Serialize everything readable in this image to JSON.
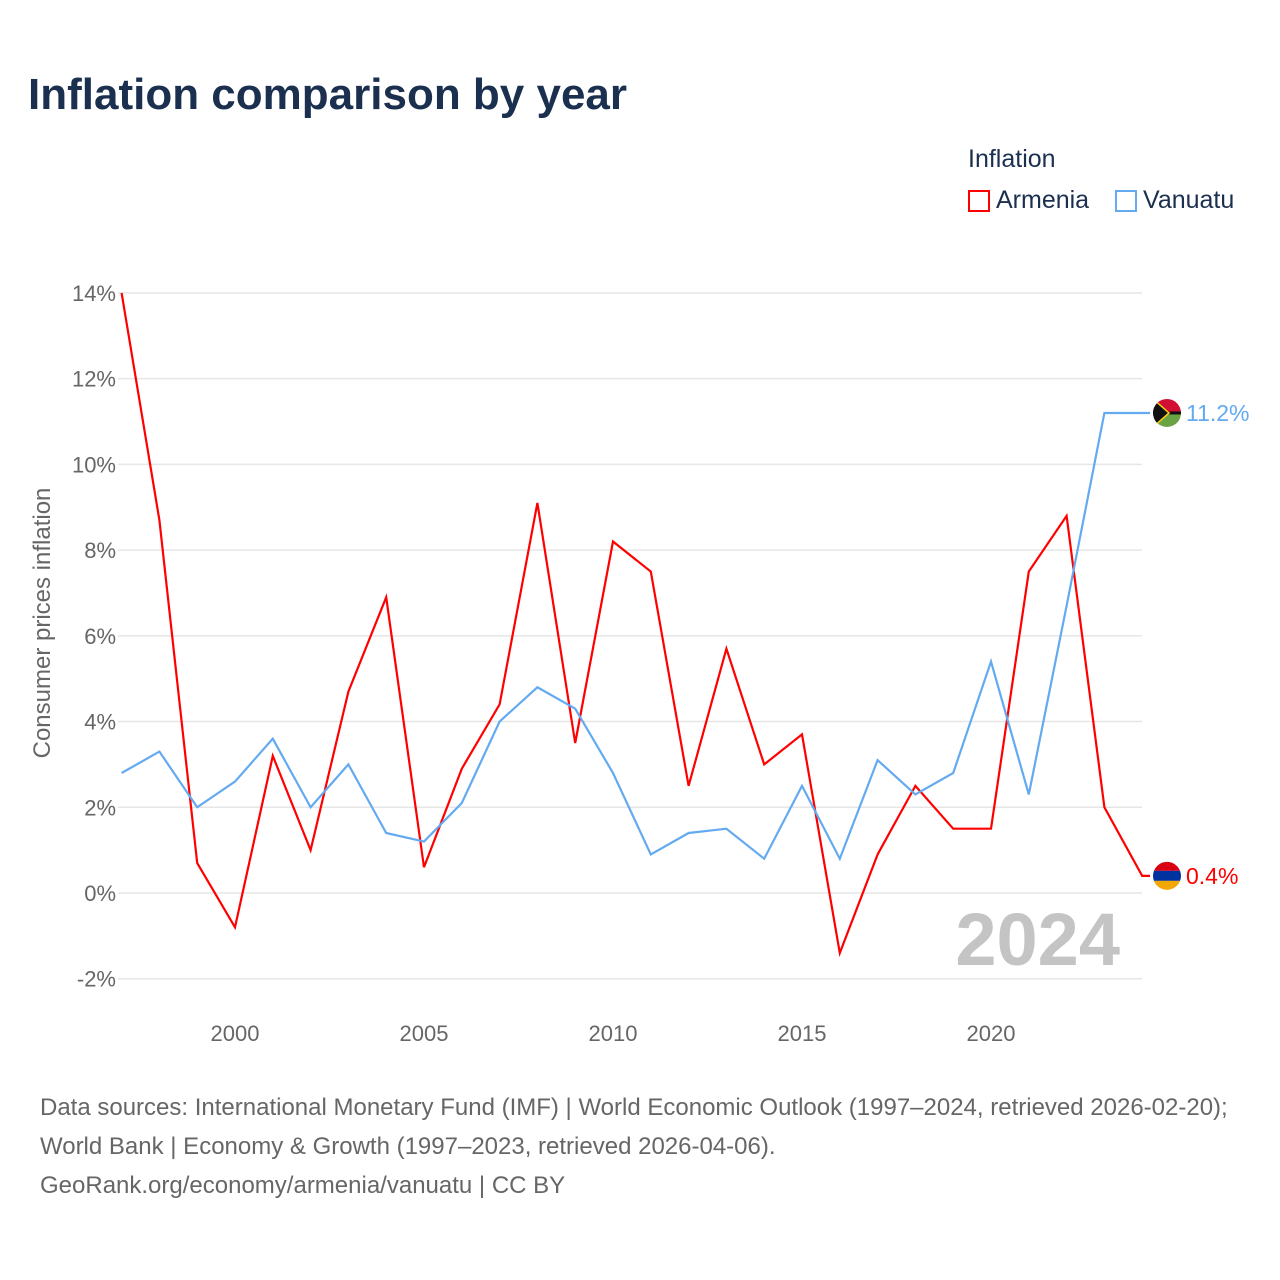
{
  "title": "Inflation comparison by year",
  "legend": {
    "title": "Inflation",
    "items": [
      "Armenia",
      "Vanuatu"
    ]
  },
  "watermark_year": "2024",
  "source_lines": [
    "Data sources: International Monetary Fund (IMF) | World Economic Outlook (1997–2024, retrieved 2026-02-20); World Bank | Economy & Growth (1997–2023, retrieved 2026-04-06).",
    "GeoRank.org/economy/armenia/vanuatu | CC BY"
  ],
  "chart_data": {
    "type": "line",
    "title": "Inflation comparison by year",
    "ylabel": "Consumer prices inflation",
    "xlabel": "",
    "ylim": [
      -2,
      14
    ],
    "xlim": [
      1997,
      2024
    ],
    "yticks": [
      "-2%",
      "0%",
      "2%",
      "4%",
      "6%",
      "8%",
      "10%",
      "12%",
      "14%"
    ],
    "xticks": [
      "2000",
      "2005",
      "2010",
      "2015",
      "2020"
    ],
    "grid": true,
    "legend_position": "top-right",
    "series": [
      {
        "name": "Armenia",
        "color": "#ff0000",
        "end_label": "0.4%",
        "x": [
          1997,
          1998,
          1999,
          2000,
          2001,
          2002,
          2003,
          2004,
          2005,
          2006,
          2007,
          2008,
          2009,
          2010,
          2011,
          2012,
          2013,
          2014,
          2015,
          2016,
          2017,
          2018,
          2019,
          2020,
          2021,
          2022,
          2023,
          2024
        ],
        "values": [
          14.0,
          8.7,
          0.7,
          -0.8,
          3.2,
          1.0,
          4.7,
          6.9,
          0.6,
          2.9,
          4.4,
          9.1,
          3.5,
          8.2,
          7.5,
          2.5,
          5.7,
          3.0,
          3.7,
          -1.4,
          0.9,
          2.5,
          1.5,
          1.5,
          7.5,
          8.8,
          2.0,
          0.4
        ]
      },
      {
        "name": "Vanuatu",
        "color": "#63aaf0",
        "end_label": "11.2%",
        "x": [
          1997,
          1998,
          1999,
          2000,
          2001,
          2002,
          2003,
          2004,
          2005,
          2006,
          2007,
          2008,
          2009,
          2010,
          2011,
          2012,
          2013,
          2014,
          2015,
          2016,
          2017,
          2018,
          2019,
          2020,
          2021,
          2022,
          2023
        ],
        "values": [
          2.8,
          3.3,
          2.0,
          2.6,
          3.6,
          2.0,
          3.0,
          1.4,
          1.2,
          2.1,
          4.0,
          4.8,
          4.3,
          2.8,
          0.9,
          1.4,
          1.5,
          0.8,
          2.5,
          0.8,
          3.1,
          2.3,
          2.8,
          5.4,
          2.3,
          6.7,
          11.2
        ]
      }
    ]
  }
}
